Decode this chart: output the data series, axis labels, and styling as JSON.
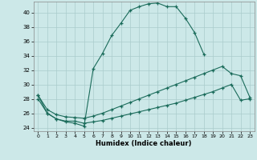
{
  "xlabel": "Humidex (Indice chaleur)",
  "background_color": "#cce8e8",
  "grid_color": "#aacccc",
  "line_color": "#1a6b5a",
  "xlim": [
    -0.5,
    23.5
  ],
  "ylim": [
    23.5,
    41.5
  ],
  "xticks": [
    0,
    1,
    2,
    3,
    4,
    5,
    6,
    7,
    8,
    9,
    10,
    11,
    12,
    13,
    14,
    15,
    16,
    17,
    18,
    19,
    20,
    21,
    22,
    23
  ],
  "yticks": [
    24,
    26,
    28,
    30,
    32,
    34,
    36,
    38,
    40
  ],
  "curve1_x": [
    0,
    1,
    2,
    3,
    4,
    5,
    6,
    7,
    8,
    9,
    10,
    11,
    12,
    13,
    14,
    15,
    16,
    17,
    18
  ],
  "curve1_y": [
    28.5,
    26.0,
    25.2,
    24.8,
    24.6,
    24.2,
    32.2,
    34.3,
    36.8,
    38.5,
    40.3,
    40.8,
    41.2,
    41.3,
    40.8,
    40.8,
    39.2,
    37.2,
    34.2
  ],
  "curve2_x": [
    0,
    1,
    2,
    3,
    4,
    5,
    6,
    7,
    8,
    9,
    10,
    11,
    12,
    13,
    14,
    15,
    16,
    17,
    18,
    19,
    20,
    21,
    22,
    23
  ],
  "curve2_y": [
    28.5,
    26.5,
    25.8,
    25.5,
    25.4,
    25.3,
    25.6,
    26.0,
    26.5,
    27.0,
    27.5,
    28.0,
    28.5,
    29.0,
    29.5,
    30.0,
    30.5,
    31.0,
    31.5,
    32.0,
    32.5,
    31.5,
    31.2,
    28.2
  ],
  "curve3_x": [
    0,
    1,
    2,
    3,
    4,
    5,
    6,
    7,
    8,
    9,
    10,
    11,
    12,
    13,
    14,
    15,
    16,
    17,
    18,
    19,
    20,
    21,
    22,
    23
  ],
  "curve3_y": [
    28.0,
    26.0,
    25.2,
    24.9,
    24.9,
    24.6,
    24.8,
    25.0,
    25.3,
    25.6,
    25.9,
    26.2,
    26.5,
    26.8,
    27.1,
    27.4,
    27.8,
    28.2,
    28.6,
    29.0,
    29.5,
    30.0,
    27.8,
    28.0
  ]
}
